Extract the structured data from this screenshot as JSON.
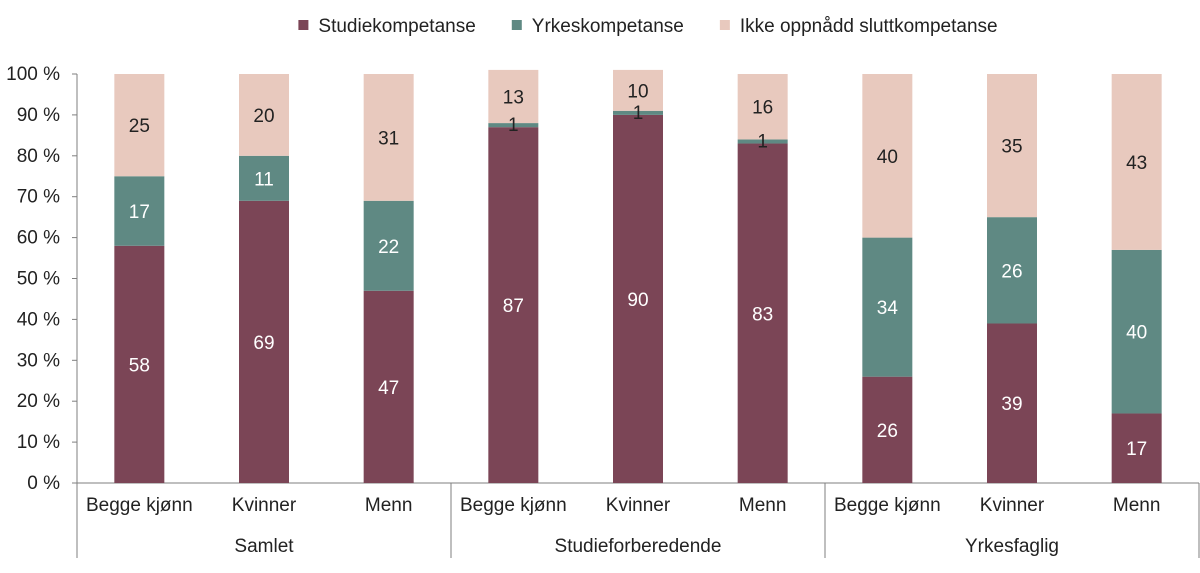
{
  "chart_data": {
    "type": "bar",
    "stacked": true,
    "ylim": [
      0,
      100
    ],
    "yticks": [
      0,
      10,
      20,
      30,
      40,
      50,
      60,
      70,
      80,
      90,
      100
    ],
    "ytick_suffix": " %",
    "legend_position": "top",
    "grid": false,
    "groups": [
      {
        "label": "Samlet",
        "categories": [
          "Begge kjønn",
          "Kvinner",
          "Menn"
        ]
      },
      {
        "label": "Studieforberedende",
        "categories": [
          "Begge kjønn",
          "Kvinner",
          "Menn"
        ]
      },
      {
        "label": "Yrkesfaglig",
        "categories": [
          "Begge kjønn",
          "Kvinner",
          "Menn"
        ]
      }
    ],
    "series": [
      {
        "name": "Studiekompetanse",
        "color": "#7b4556",
        "label_color": "#ffffff",
        "values": [
          58,
          69,
          47,
          87,
          90,
          83,
          26,
          39,
          17
        ]
      },
      {
        "name": "Yrkeskompetanse",
        "color": "#5f8983",
        "label_color": "#ffffff",
        "values": [
          17,
          11,
          22,
          1,
          1,
          1,
          34,
          26,
          40
        ]
      },
      {
        "name": "Ikke oppnådd sluttkompetanse",
        "color": "#e8c9be",
        "label_color": "#222222",
        "values": [
          25,
          20,
          31,
          13,
          10,
          16,
          40,
          35,
          43
        ]
      }
    ]
  }
}
